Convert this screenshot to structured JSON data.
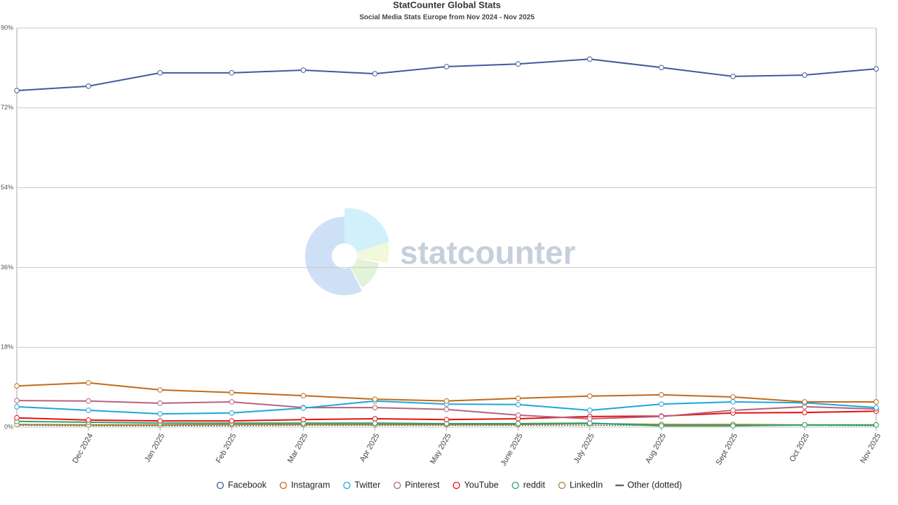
{
  "chart_data": {
    "type": "line",
    "title": "StatCounter Global Stats",
    "subtitle": "Social Media Stats Europe from Nov 2024 - Nov 2025",
    "watermark": "statcounter",
    "categories": [
      null,
      "Dec 2024",
      "Jan 2025",
      "Feb 2025",
      "Mar 2025",
      "Apr 2025",
      "May 2025",
      "June 2025",
      "July 2025",
      "Aug 2025",
      "Sept 2025",
      "Oct 2025",
      "Nov 2025"
    ],
    "ylim": [
      0,
      90
    ],
    "yticks": [
      {
        "value": 0,
        "label": "0%"
      },
      {
        "value": 18,
        "label": "18%"
      },
      {
        "value": 36,
        "label": "36%"
      },
      {
        "value": 54,
        "label": "54%"
      },
      {
        "value": 72,
        "label": "72%"
      },
      {
        "value": 90,
        "label": "90%"
      }
    ],
    "grid": true,
    "legend": "bottom",
    "series": [
      {
        "name": "Facebook",
        "color": "#3f5a9a",
        "values": [
          75.9,
          76.9,
          79.9,
          79.9,
          80.5,
          79.7,
          81.3,
          81.9,
          83.0,
          81.1,
          79.1,
          79.4,
          80.8
        ]
      },
      {
        "name": "Instagram",
        "color": "#c0691b",
        "values": [
          9.3,
          10.0,
          8.4,
          7.8,
          7.1,
          6.3,
          5.9,
          6.5,
          7.0,
          7.3,
          6.8,
          5.7,
          5.7
        ]
      },
      {
        "name": "Twitter",
        "color": "#1ba6dc",
        "values": [
          4.6,
          3.8,
          3.0,
          3.2,
          4.3,
          5.9,
          5.2,
          5.1,
          3.8,
          5.2,
          5.7,
          5.5,
          4.4
        ]
      },
      {
        "name": "Pinterest",
        "color": "#b5637c",
        "values": [
          6.0,
          5.9,
          5.4,
          5.7,
          4.4,
          4.4,
          4.0,
          2.7,
          1.9,
          2.4,
          3.8,
          4.6,
          4.1
        ]
      },
      {
        "name": "YouTube",
        "color": "#e61010",
        "values": [
          2.1,
          1.6,
          1.4,
          1.4,
          1.7,
          1.9,
          1.7,
          1.9,
          2.4,
          2.5,
          3.2,
          3.3,
          3.6
        ]
      },
      {
        "name": "reddit",
        "color": "#2ea36a",
        "values": [
          1.3,
          1.1,
          0.9,
          0.9,
          0.9,
          0.9,
          0.8,
          0.8,
          0.9,
          0.3,
          0.3,
          0.5,
          0.5
        ]
      },
      {
        "name": "LinkedIn",
        "color": "#a27f33",
        "values": [
          0.6,
          0.5,
          0.5,
          0.6,
          0.6,
          0.6,
          0.6,
          0.6,
          0.8,
          0.6,
          0.6,
          0.5,
          0.5
        ]
      },
      {
        "name": "Other (dotted)",
        "color": "#666666",
        "style": "dotted",
        "values": [
          0.4,
          0.3,
          0.3,
          0.3,
          0.4,
          0.4,
          0.4,
          0.4,
          0.4,
          0.4,
          0.4,
          0.4,
          0.3
        ]
      }
    ]
  }
}
